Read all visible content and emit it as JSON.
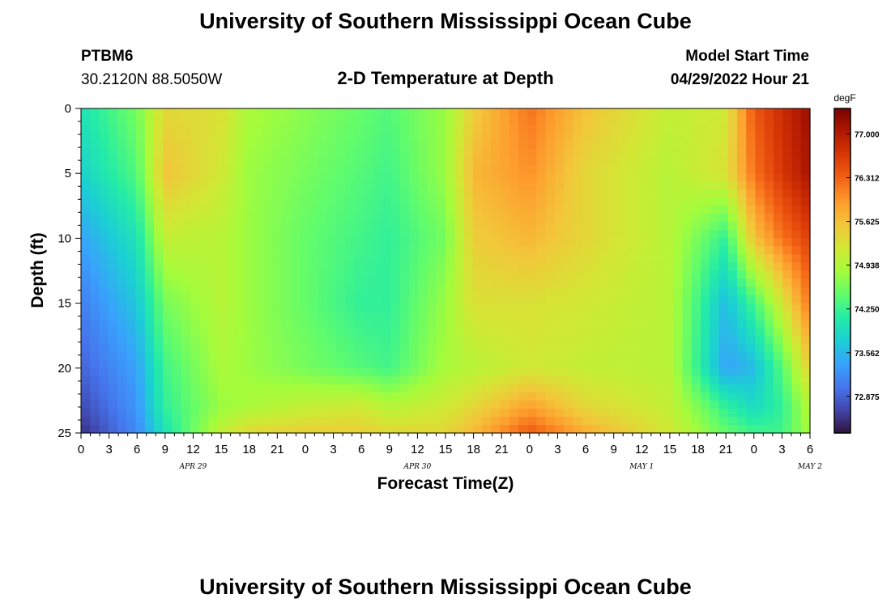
{
  "header": {
    "title": "University of Southern Mississippi Ocean Cube",
    "station": "PTBM6",
    "coords": "30.2120N  88.5050W",
    "plot_title": "2-D Temperature at Depth",
    "model_label": "Model Start Time",
    "model_time": "04/29/2022 Hour 21"
  },
  "footer": {
    "title": "University of Southern Mississippi Ocean Cube"
  },
  "chart_data": {
    "type": "heatmap",
    "title": "2-D Temperature at Depth",
    "xlabel": "Forecast Time(Z)",
    "ylabel": "Depth (ft)",
    "x_start": "2022-04-29 00Z",
    "x_end": "2022-05-02 06Z",
    "x_ticks": [
      "0",
      "3",
      "6",
      "9",
      "12",
      "15",
      "18",
      "21",
      "0",
      "3",
      "6",
      "9",
      "12",
      "15",
      "18",
      "21",
      "0",
      "3",
      "6",
      "9",
      "12",
      "15",
      "18",
      "21",
      "0",
      "3",
      "6"
    ],
    "date_labels": [
      {
        "label": "APR 29",
        "at_hour": 12
      },
      {
        "label": "APR 30",
        "at_hour": 36
      },
      {
        "label": "MAY 1",
        "at_hour": 60
      },
      {
        "label": "MAY 2",
        "at_hour": 78
      }
    ],
    "y_ticks": [
      "0",
      "5",
      "10",
      "15",
      "20",
      "25"
    ],
    "ylim": [
      25,
      0
    ],
    "colorbar": {
      "unit": "degF",
      "ticks": [
        "77.000",
        "76.312",
        "75.625",
        "74.938",
        "74.250",
        "73.562",
        "72.875"
      ],
      "range": [
        72.3,
        77.4
      ],
      "colors": [
        "#30123b",
        "#4145ab",
        "#4675ed",
        "#39a2fc",
        "#1bcfd4",
        "#24eca6",
        "#61fc6c",
        "#a4fc3b",
        "#d1e834",
        "#f3c63a",
        "#fe9b2d",
        "#f36315",
        "#d93806",
        "#b11901",
        "#7a0402"
      ]
    },
    "forecast_hours": [
      0,
      6,
      9,
      15,
      18,
      24,
      30,
      33,
      39,
      42,
      48,
      54,
      63,
      69,
      72,
      75,
      78
    ],
    "depth_ft": [
      0,
      5,
      10,
      15,
      20,
      23,
      25
    ],
    "temperature_degF": [
      [
        74.0,
        74.6,
        75.4,
        75.3,
        74.9,
        74.7,
        74.5,
        74.4,
        74.8,
        75.5,
        76.2,
        75.6,
        75.1,
        75.2,
        76.4,
        76.8,
        77.2
      ],
      [
        73.8,
        74.4,
        75.6,
        75.2,
        74.8,
        74.6,
        74.4,
        74.3,
        74.8,
        75.7,
        76.0,
        75.4,
        75.0,
        75.3,
        76.2,
        76.7,
        77.1
      ],
      [
        73.4,
        74.0,
        75.1,
        75.0,
        74.8,
        74.5,
        74.3,
        74.2,
        74.6,
        75.5,
        75.7,
        75.4,
        75.0,
        74.2,
        75.6,
        76.2,
        76.6
      ],
      [
        73.1,
        73.7,
        74.6,
        75.0,
        74.8,
        74.5,
        74.2,
        74.2,
        74.8,
        75.3,
        75.3,
        75.2,
        75.0,
        73.6,
        74.3,
        75.2,
        76.2
      ],
      [
        72.9,
        73.4,
        74.3,
        74.9,
        74.8,
        74.6,
        74.4,
        74.3,
        74.9,
        75.0,
        75.2,
        75.1,
        75.0,
        73.4,
        73.6,
        74.4,
        75.5
      ],
      [
        72.7,
        73.3,
        74.2,
        74.8,
        74.9,
        75.1,
        75.2,
        75.0,
        75.2,
        75.4,
        75.9,
        75.4,
        75.1,
        74.2,
        73.9,
        74.2,
        75.0
      ],
      [
        72.5,
        73.2,
        74.0,
        75.1,
        75.4,
        75.5,
        75.5,
        75.4,
        75.4,
        75.7,
        76.4,
        75.8,
        75.2,
        74.5,
        74.3,
        74.3,
        74.9
      ]
    ]
  }
}
